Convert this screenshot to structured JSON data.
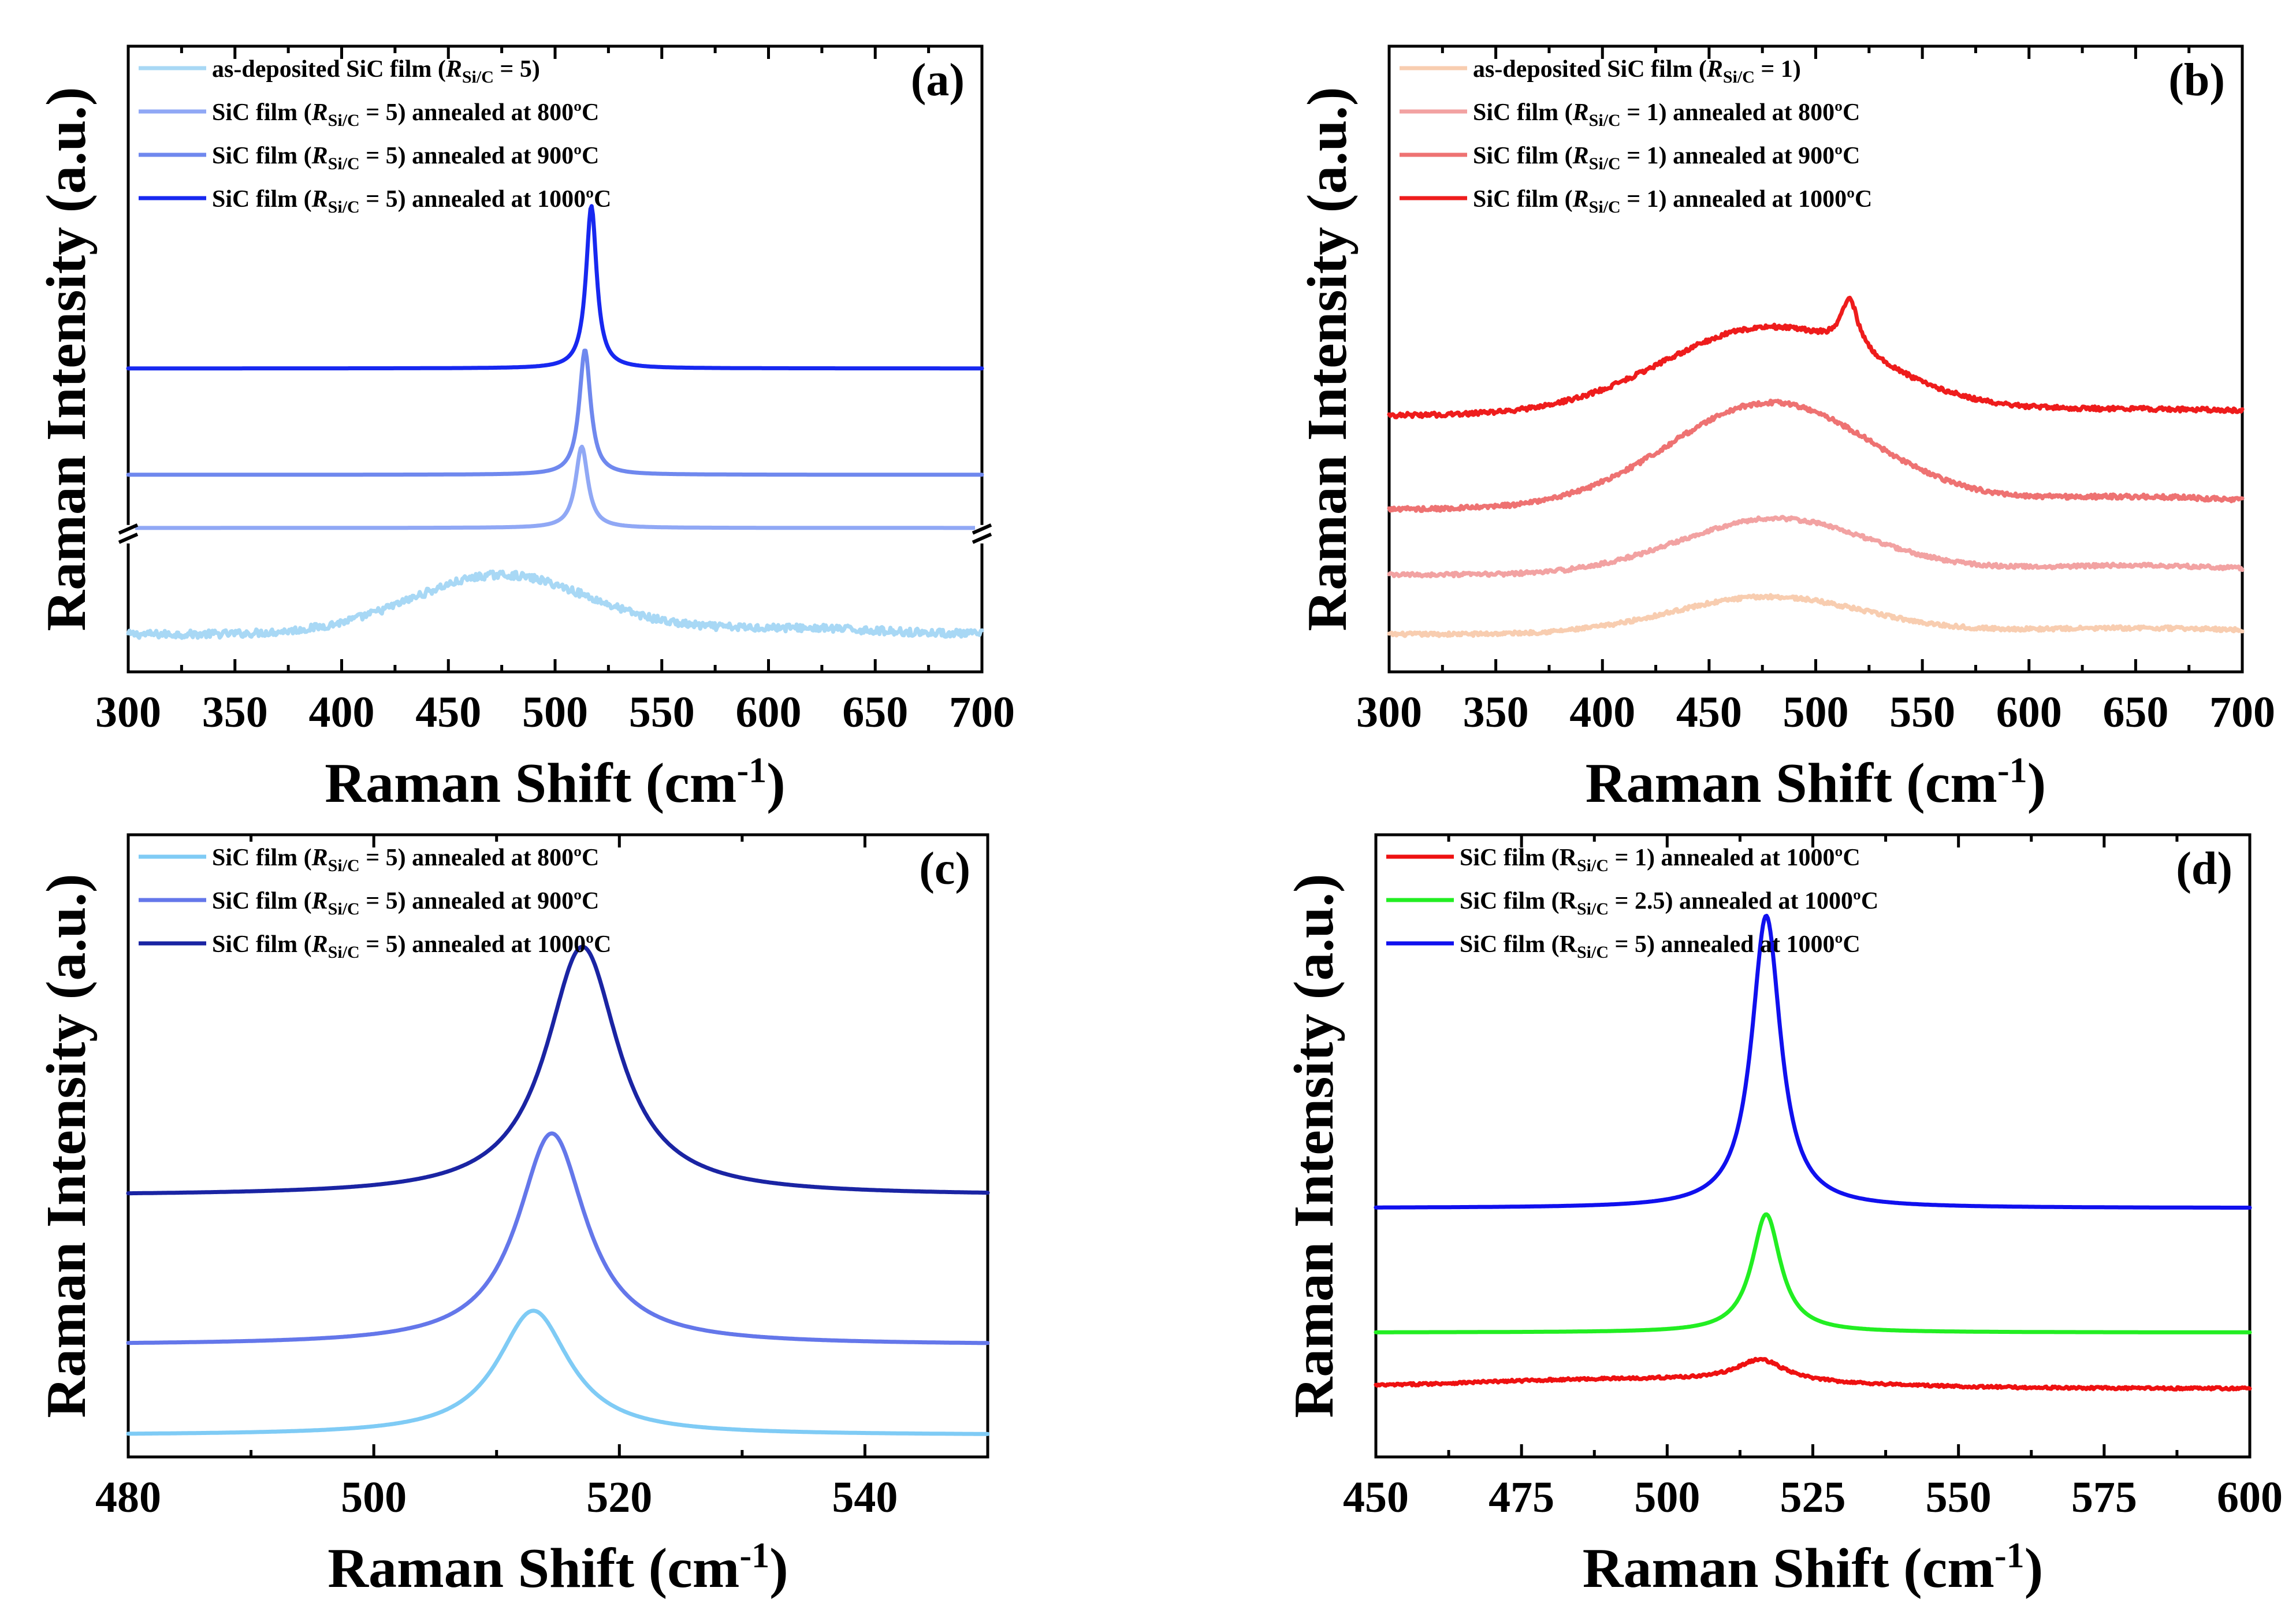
{
  "chart_data": [
    {
      "type": "line",
      "panel_label": "(a)",
      "xlabel_main": "Raman Shift (cm",
      "xlabel_sup": "-1",
      "xlabel_tail": ")",
      "ylabel": "Raman Intensity (a.u.)",
      "xlim": [
        300,
        700
      ],
      "xticks": [
        300,
        350,
        400,
        450,
        500,
        550,
        600,
        650,
        700
      ],
      "axis_break": true,
      "legend_position": "top-left",
      "legend": [
        {
          "pre": "as-deposited SiC film (",
          "r": "R",
          "sub": "Si/C",
          "post": " = 5)"
        },
        {
          "pre": "SiC film (",
          "r": "R",
          "sub": "Si/C",
          "post": " = 5) annealed at 800ºC"
        },
        {
          "pre": "SiC film (",
          "r": "R",
          "sub": "Si/C",
          "post": " = 5) annealed at 900ºC"
        },
        {
          "pre": "SiC film (",
          "r": "R",
          "sub": "Si/C",
          "post": " = 5) annealed at 1000ºC"
        }
      ],
      "series": [
        {
          "color": "#a8d8f5",
          "baseline": 0.06,
          "slope": 0.0,
          "noise": 0.012,
          "peaks": [
            {
              "x0": 475,
              "w": 42,
              "h": 0.095,
              "shape": "gauss"
            },
            {
              "x0": 610,
              "w": 40,
              "h": 0.01,
              "shape": "gauss"
            }
          ]
        },
        {
          "color": "#90a8f5",
          "baseline": 0.23,
          "slope": 0.0,
          "noise": 0,
          "peaks": [
            {
              "x0": 512.5,
              "w": 3.5,
              "h": 0.13,
              "shape": "lorentz"
            }
          ]
        },
        {
          "color": "#6f88ee",
          "baseline": 0.315,
          "slope": 0.0,
          "noise": 0,
          "peaks": [
            {
              "x0": 514,
              "w": 3.2,
              "h": 0.2,
              "shape": "lorentz"
            }
          ]
        },
        {
          "color": "#1728f0",
          "baseline": 0.485,
          "slope": 0.0,
          "noise": 0,
          "peaks": [
            {
              "x0": 517,
              "w": 3.0,
              "h": 0.26,
              "shape": "lorentz"
            }
          ]
        }
      ]
    },
    {
      "type": "line",
      "panel_label": "(b)",
      "xlabel_main": "Raman Shift (cm",
      "xlabel_sup": "-1",
      "xlabel_tail": ")",
      "ylabel": "Raman Intensity (a.u.)",
      "xlim": [
        300,
        700
      ],
      "xticks": [
        300,
        350,
        400,
        450,
        500,
        550,
        600,
        650,
        700
      ],
      "axis_break": false,
      "legend_position": "top-left",
      "legend": [
        {
          "pre": "as-deposited SiC film (",
          "r": "R",
          "sub": "Si/C",
          "post": " = 1)"
        },
        {
          "pre": "SiC film (",
          "r": "R",
          "sub": "Si/C",
          "post": " = 1) annealed at 800ºC"
        },
        {
          "pre": "SiC film (",
          "r": "R",
          "sub": "Si/C",
          "post": " = 1) annealed at 900ºC"
        },
        {
          "pre": "SiC film (",
          "r": "R",
          "sub": "Si/C",
          "post": " = 1) annealed at 1000ºC"
        }
      ],
      "series": [
        {
          "color": "#f8cdb0",
          "baseline": 0.06,
          "slope": 0.0,
          "noise": 0.006,
          "peaks": [
            {
              "x0": 478,
              "w": 45,
              "h": 0.06,
              "shape": "gauss"
            },
            {
              "x0": 650,
              "w": 60,
              "h": 0.01,
              "shape": "gauss"
            }
          ]
        },
        {
          "color": "#f2a2a2",
          "baseline": 0.155,
          "slope": 0.0,
          "noise": 0.006,
          "peaks": [
            {
              "x0": 481,
              "w": 45,
              "h": 0.09,
              "shape": "gauss"
            },
            {
              "x0": 650,
              "w": 60,
              "h": 0.015,
              "shape": "gauss"
            }
          ]
        },
        {
          "color": "#ee7272",
          "baseline": 0.26,
          "slope": 0.0,
          "noise": 0.007,
          "peaks": [
            {
              "x0": 479,
              "w": 48,
              "h": 0.17,
              "shape": "gauss"
            },
            {
              "x0": 650,
              "w": 60,
              "h": 0.02,
              "shape": "gauss"
            }
          ]
        },
        {
          "color": "#ee1c1c",
          "baseline": 0.41,
          "slope": 0.0,
          "noise": 0.007,
          "peaks": [
            {
              "x0": 478,
              "w": 50,
              "h": 0.14,
              "shape": "gauss"
            },
            {
              "x0": 516,
              "w": 5,
              "h": 0.08,
              "shape": "lorentz"
            },
            {
              "x0": 650,
              "w": 60,
              "h": 0.01,
              "shape": "gauss"
            }
          ]
        }
      ]
    },
    {
      "type": "line",
      "panel_label": "(c)",
      "xlabel_main": "Raman Shift (cm",
      "xlabel_sup": "-1",
      "xlabel_tail": ")",
      "ylabel": "Raman Intensity (a.u.)",
      "xlim": [
        480,
        550
      ],
      "xticks": [
        480,
        500,
        520,
        540
      ],
      "axis_break": false,
      "legend_position": "top-left",
      "legend": [
        {
          "pre": "SiC film (",
          "r": "R",
          "sub": "Si/C",
          "post": " = 5) annealed at 800ºC"
        },
        {
          "pre": "SiC film (",
          "r": "R",
          "sub": "Si/C",
          "post": " = 5) annealed at 900ºC"
        },
        {
          "pre": "SiC film (",
          "r": "R",
          "sub": "Si/C",
          "post": " = 5) annealed at 1000ºC"
        }
      ],
      "series": [
        {
          "color": "#7fcbf5",
          "baseline": 0.035,
          "slope": 0.0,
          "noise": 0,
          "peaks": [
            {
              "x0": 513,
              "w": 3.6,
              "h": 0.2,
              "shape": "lorentz"
            }
          ]
        },
        {
          "color": "#6477ea",
          "baseline": 0.18,
          "slope": 0.0,
          "noise": 0,
          "peaks": [
            {
              "x0": 514.5,
              "w": 3.4,
              "h": 0.34,
              "shape": "lorentz"
            }
          ]
        },
        {
          "color": "#1a24a3",
          "baseline": 0.42,
          "slope": 0.0,
          "noise": 0,
          "peaks": [
            {
              "x0": 517,
              "w": 3.6,
              "h": 0.4,
              "shape": "lorentz"
            }
          ]
        }
      ]
    },
    {
      "type": "line",
      "panel_label": "(d)",
      "xlabel_main": "Raman Shift (cm",
      "xlabel_sup": "-1",
      "xlabel_tail": ")",
      "ylabel": "Raman Intensity (a.u.)",
      "xlim": [
        450,
        600
      ],
      "xticks": [
        450,
        475,
        500,
        525,
        550,
        575,
        600
      ],
      "axis_break": false,
      "legend_position": "top-left",
      "legend": [
        {
          "pre": "SiC film (",
          "r": "R",
          "sub": "Si/C",
          "post": " = 1) annealed at 1000ºC",
          "upright": true
        },
        {
          "pre": "SiC film (",
          "r": "R",
          "sub": "Si/C",
          "post": " = 2.5) annealed at 1000ºC",
          "upright": true
        },
        {
          "pre": "SiC film (",
          "r": "R",
          "sub": "Si/C",
          "post": " = 5) annealed at 1000ºC",
          "upright": true
        }
      ],
      "series": [
        {
          "color": "#ee1111",
          "baseline": 0.11,
          "slope": 0.0,
          "noise": 0.004,
          "peaks": [
            {
              "x0": 516,
              "w": 5,
              "h": 0.035,
              "shape": "lorentz"
            },
            {
              "x0": 495,
              "w": 30,
              "h": 0.015,
              "shape": "gauss"
            }
          ]
        },
        {
          "color": "#22ee22",
          "baseline": 0.2,
          "slope": 0.0,
          "noise": 0,
          "peaks": [
            {
              "x0": 517,
              "w": 3.0,
              "h": 0.19,
              "shape": "lorentz"
            }
          ]
        },
        {
          "color": "#1010ee",
          "baseline": 0.4,
          "slope": 0.0,
          "noise": 0,
          "peaks": [
            {
              "x0": 517,
              "w": 3.0,
              "h": 0.47,
              "shape": "lorentz"
            }
          ]
        }
      ]
    }
  ]
}
